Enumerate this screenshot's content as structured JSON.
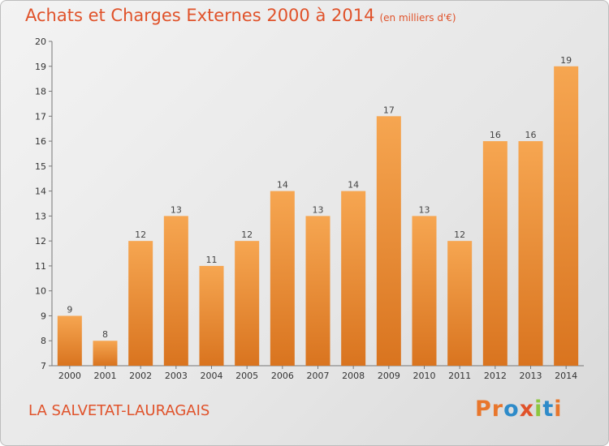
{
  "header": {
    "title": "Achats et Charges Externes 2000 à 2014",
    "subtitle": "(en milliers d'€)"
  },
  "footer": {
    "place": "LA SALVETAT-LAURAGAIS",
    "logo_text": "Proxiti",
    "logo_colors": [
      "#e8762c",
      "#e8762c",
      "#2e8bc9",
      "#e0522a",
      "#8cc63f",
      "#2e8bc9",
      "#e8762c"
    ]
  },
  "chart_data": {
    "type": "bar",
    "title": "Achats et Charges Externes 2000 à 2014",
    "subtitle": "(en milliers d'€)",
    "categories": [
      "2000",
      "2001",
      "2002",
      "2003",
      "2004",
      "2005",
      "2006",
      "2007",
      "2008",
      "2009",
      "2010",
      "2011",
      "2012",
      "2013",
      "2014"
    ],
    "values": [
      9,
      8,
      12,
      13,
      11,
      12,
      14,
      13,
      14,
      17,
      13,
      12,
      16,
      16,
      19
    ],
    "ylim": [
      7,
      20
    ],
    "yticks": [
      7,
      8,
      9,
      10,
      11,
      12,
      13,
      14,
      15,
      16,
      17,
      18,
      19,
      20
    ],
    "grid": false,
    "bar_color_top": "#f6a651",
    "bar_color_bottom": "#d9741f"
  }
}
